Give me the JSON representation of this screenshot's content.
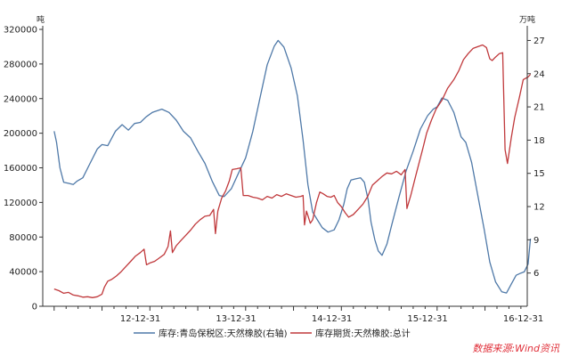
{
  "chart_data": {
    "type": "line",
    "left_axis_unit": "吨",
    "right_axis_unit": "万吨",
    "left_ylim": [
      0,
      320000
    ],
    "left_ticks": [
      "0",
      "40000",
      "80000",
      "120000",
      "160000",
      "200000",
      "240000",
      "280000",
      "320000"
    ],
    "right_ylim": [
      3,
      28
    ],
    "right_ticks": [
      "6",
      "9",
      "12",
      "15",
      "18",
      "21",
      "24",
      "27"
    ],
    "x_ticks": [
      "12-12-31",
      "13-12-31",
      "14-12-31",
      "15-12-31",
      "16-12-31"
    ],
    "grid": false,
    "legend_position": "bottom",
    "series": [
      {
        "name": "库存:青岛保税区:天然橡胶(右轴)",
        "axis": "right",
        "color": "#4f79a8",
        "points": [
          [
            0.0,
            18.8
          ],
          [
            0.05,
            17.8
          ],
          [
            0.12,
            15.5
          ],
          [
            0.2,
            14.2
          ],
          [
            0.3,
            14.1
          ],
          [
            0.4,
            14.0
          ],
          [
            0.48,
            14.3
          ],
          [
            0.6,
            14.6
          ],
          [
            0.75,
            15.9
          ],
          [
            0.9,
            17.2
          ],
          [
            1.0,
            17.6
          ],
          [
            1.12,
            17.5
          ],
          [
            1.28,
            18.8
          ],
          [
            1.42,
            19.4
          ],
          [
            1.55,
            18.9
          ],
          [
            1.68,
            19.5
          ],
          [
            1.8,
            19.6
          ],
          [
            1.92,
            20.1
          ],
          [
            2.05,
            20.5
          ],
          [
            2.25,
            20.8
          ],
          [
            2.4,
            20.5
          ],
          [
            2.55,
            19.8
          ],
          [
            2.7,
            18.8
          ],
          [
            2.85,
            18.2
          ],
          [
            3.0,
            17.0
          ],
          [
            3.15,
            15.9
          ],
          [
            3.3,
            14.3
          ],
          [
            3.45,
            13.0
          ],
          [
            3.55,
            12.9
          ],
          [
            3.7,
            13.6
          ],
          [
            3.85,
            15.0
          ],
          [
            4.0,
            16.4
          ],
          [
            4.15,
            18.8
          ],
          [
            4.3,
            21.8
          ],
          [
            4.45,
            24.8
          ],
          [
            4.6,
            26.5
          ],
          [
            4.68,
            27.0
          ],
          [
            4.8,
            26.4
          ],
          [
            4.95,
            24.5
          ],
          [
            5.08,
            22.0
          ],
          [
            5.2,
            18.0
          ],
          [
            5.3,
            14.0
          ],
          [
            5.4,
            11.5
          ],
          [
            5.5,
            10.8
          ],
          [
            5.6,
            10.1
          ],
          [
            5.72,
            9.7
          ],
          [
            5.85,
            9.9
          ],
          [
            5.95,
            10.8
          ],
          [
            6.05,
            12.2
          ],
          [
            6.12,
            13.6
          ],
          [
            6.2,
            14.4
          ],
          [
            6.3,
            14.5
          ],
          [
            6.4,
            14.6
          ],
          [
            6.48,
            14.2
          ],
          [
            6.56,
            12.6
          ],
          [
            6.62,
            10.6
          ],
          [
            6.7,
            9.0
          ],
          [
            6.77,
            8.0
          ],
          [
            6.85,
            7.6
          ],
          [
            6.95,
            8.6
          ],
          [
            7.05,
            10.3
          ],
          [
            7.2,
            12.8
          ],
          [
            7.35,
            15.2
          ],
          [
            7.5,
            17.0
          ],
          [
            7.65,
            19.0
          ],
          [
            7.8,
            20.2
          ],
          [
            7.92,
            20.8
          ],
          [
            8.0,
            21.0
          ],
          [
            8.1,
            21.8
          ],
          [
            8.22,
            21.6
          ],
          [
            8.35,
            20.5
          ],
          [
            8.5,
            18.3
          ],
          [
            8.6,
            17.8
          ],
          [
            8.72,
            16.0
          ],
          [
            8.85,
            13.0
          ],
          [
            8.98,
            10.0
          ],
          [
            9.1,
            7.0
          ],
          [
            9.22,
            5.2
          ],
          [
            9.35,
            4.3
          ],
          [
            9.45,
            4.2
          ],
          [
            9.55,
            5.0
          ],
          [
            9.65,
            5.8
          ],
          [
            9.75,
            6.0
          ],
          [
            9.82,
            6.1
          ],
          [
            9.9,
            6.8
          ],
          [
            9.95,
            9.1
          ]
        ]
      },
      {
        "name": "库存期货:天然橡胶:总计",
        "axis": "left",
        "color": "#c0393c",
        "points": [
          [
            0.0,
            20000
          ],
          [
            0.1,
            18000
          ],
          [
            0.2,
            15000
          ],
          [
            0.3,
            16000
          ],
          [
            0.4,
            13000
          ],
          [
            0.5,
            12000
          ],
          [
            0.6,
            10500
          ],
          [
            0.7,
            11000
          ],
          [
            0.8,
            10000
          ],
          [
            0.9,
            11000
          ],
          [
            1.0,
            14000
          ],
          [
            1.05,
            22000
          ],
          [
            1.12,
            29000
          ],
          [
            1.2,
            31000
          ],
          [
            1.3,
            35000
          ],
          [
            1.4,
            40000
          ],
          [
            1.5,
            46000
          ],
          [
            1.6,
            52000
          ],
          [
            1.7,
            58000
          ],
          [
            1.8,
            62000
          ],
          [
            1.88,
            66000
          ],
          [
            1.93,
            48000
          ],
          [
            2.0,
            50000
          ],
          [
            2.1,
            52000
          ],
          [
            2.2,
            56000
          ],
          [
            2.3,
            60000
          ],
          [
            2.38,
            69000
          ],
          [
            2.43,
            87000
          ],
          [
            2.47,
            62000
          ],
          [
            2.55,
            70000
          ],
          [
            2.65,
            76000
          ],
          [
            2.75,
            82000
          ],
          [
            2.85,
            88000
          ],
          [
            2.95,
            95000
          ],
          [
            3.05,
            100000
          ],
          [
            3.15,
            104000
          ],
          [
            3.25,
            105000
          ],
          [
            3.33,
            112000
          ],
          [
            3.37,
            84000
          ],
          [
            3.42,
            110000
          ],
          [
            3.5,
            125000
          ],
          [
            3.58,
            133000
          ],
          [
            3.66,
            145000
          ],
          [
            3.72,
            158000
          ],
          [
            3.82,
            159000
          ],
          [
            3.9,
            160000
          ],
          [
            3.95,
            128000
          ],
          [
            4.05,
            128000
          ],
          [
            4.15,
            126000
          ],
          [
            4.25,
            125000
          ],
          [
            4.35,
            123000
          ],
          [
            4.45,
            127000
          ],
          [
            4.55,
            125000
          ],
          [
            4.65,
            129000
          ],
          [
            4.75,
            127000
          ],
          [
            4.85,
            130000
          ],
          [
            4.95,
            128000
          ],
          [
            5.05,
            126000
          ],
          [
            5.15,
            127000
          ],
          [
            5.2,
            128000
          ],
          [
            5.23,
            94000
          ],
          [
            5.27,
            110000
          ],
          [
            5.35,
            96000
          ],
          [
            5.4,
            100000
          ],
          [
            5.48,
            120000
          ],
          [
            5.55,
            132000
          ],
          [
            5.62,
            130000
          ],
          [
            5.7,
            127000
          ],
          [
            5.78,
            126000
          ],
          [
            5.85,
            128000
          ],
          [
            5.92,
            120000
          ],
          [
            6.0,
            115000
          ],
          [
            6.08,
            108000
          ],
          [
            6.15,
            103000
          ],
          [
            6.25,
            106000
          ],
          [
            6.35,
            112000
          ],
          [
            6.45,
            118000
          ],
          [
            6.55,
            127000
          ],
          [
            6.65,
            140000
          ],
          [
            6.75,
            145000
          ],
          [
            6.85,
            150000
          ],
          [
            6.95,
            154000
          ],
          [
            7.05,
            153000
          ],
          [
            7.15,
            156000
          ],
          [
            7.25,
            152000
          ],
          [
            7.33,
            158000
          ],
          [
            7.37,
            113000
          ],
          [
            7.45,
            128000
          ],
          [
            7.55,
            150000
          ],
          [
            7.62,
            165000
          ],
          [
            7.7,
            182000
          ],
          [
            7.78,
            200000
          ],
          [
            7.88,
            215000
          ],
          [
            7.98,
            228000
          ],
          [
            8.1,
            238000
          ],
          [
            8.22,
            252000
          ],
          [
            8.35,
            262000
          ],
          [
            8.45,
            272000
          ],
          [
            8.55,
            285000
          ],
          [
            8.65,
            292000
          ],
          [
            8.75,
            298000
          ],
          [
            8.85,
            300000
          ],
          [
            8.95,
            302000
          ],
          [
            9.03,
            299000
          ],
          [
            9.1,
            286000
          ],
          [
            9.15,
            284000
          ],
          [
            9.22,
            288000
          ],
          [
            9.3,
            292000
          ],
          [
            9.37,
            293000
          ],
          [
            9.42,
            181000
          ],
          [
            9.47,
            165000
          ],
          [
            9.55,
            195000
          ],
          [
            9.62,
            218000
          ],
          [
            9.72,
            242000
          ],
          [
            9.8,
            262000
          ],
          [
            9.9,
            265000
          ],
          [
            9.95,
            268000
          ]
        ]
      }
    ]
  },
  "source": "数据来源:Wind资讯"
}
